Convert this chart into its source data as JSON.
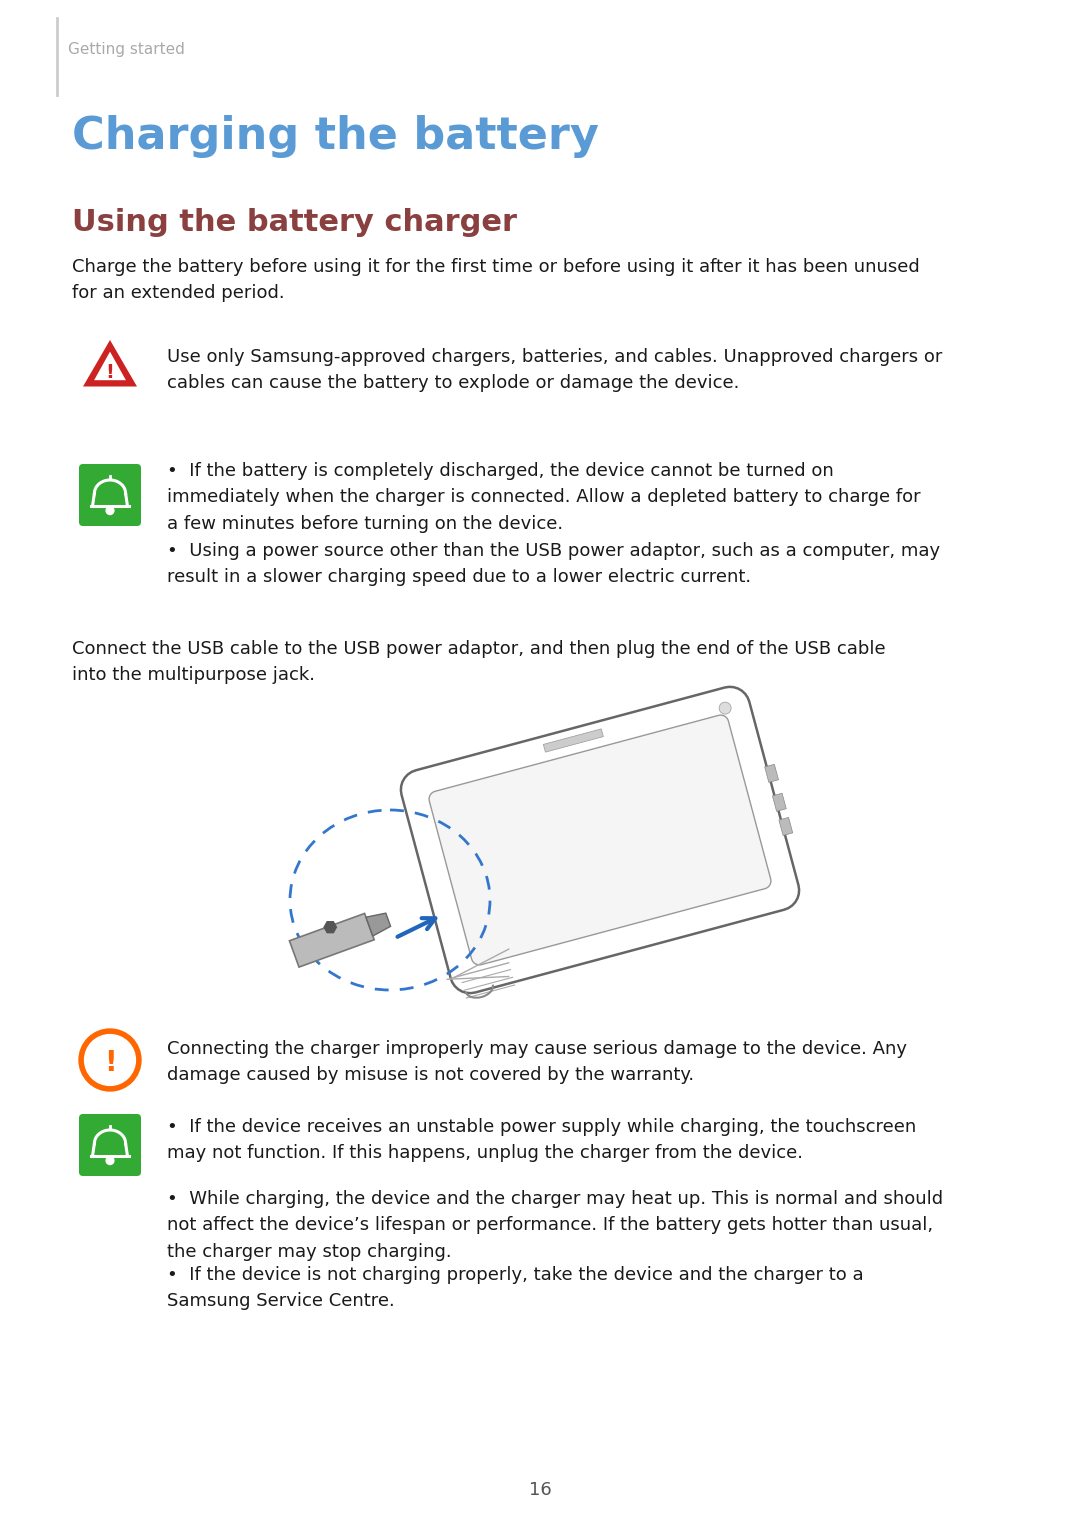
{
  "bg_color": "#ffffff",
  "page_num": "16",
  "section_label": "Getting started",
  "section_label_color": "#aaaaaa",
  "title_main": "Charging the battery",
  "title_main_color": "#5b9bd5",
  "title_sub": "Using the battery charger",
  "title_sub_color": "#8b4040",
  "body_color": "#1a1a1a",
  "warn1_text": "Use only Samsung-approved chargers, batteries, and cables. Unapproved chargers or\ncables can cause the battery to explode or damage the device.",
  "note_bullet1a": "If the battery is completely discharged, the device cannot be turned on\nimmediately when the charger is connected. Allow a depleted battery to charge for\na few minutes before turning on the device.",
  "note_bullet1b": "Using a power source other than the USB power adaptor, such as a computer, may\nresult in a slower charging speed due to a lower electric current.",
  "para1": "Charge the battery before using it for the first time or before using it after it has been unused\nfor an extended period.",
  "para2": "Connect the USB cable to the USB power adaptor, and then plug the end of the USB cable\ninto the multipurpose jack.",
  "warn2_text": "Connecting the charger improperly may cause serious damage to the device. Any\ndamage caused by misuse is not covered by the warranty.",
  "note_bullet2a": "If the device receives an unstable power supply while charging, the touchscreen\nmay not function. If this happens, unplug the charger from the device.",
  "note_bullet2b": "While charging, the device and the charger may heat up. This is normal and should\nnot affect the device’s lifespan or performance. If the battery gets hotter than usual,\nthe charger may stop charging.",
  "note_bullet2c": "If the device is not charging properly, take the device and the charger to a\nSamsung Service Centre."
}
